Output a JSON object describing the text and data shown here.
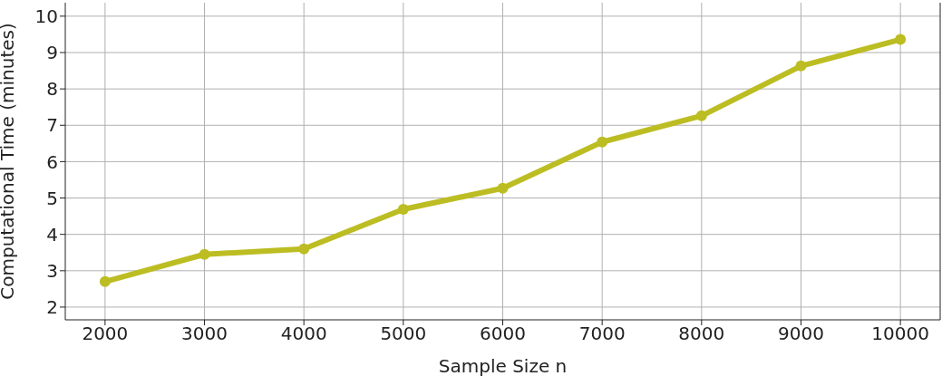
{
  "chart_data": {
    "type": "line",
    "xlabel": "Sample Size n",
    "ylabel": "Computational Time (minutes)",
    "x": [
      2000,
      3000,
      4000,
      5000,
      6000,
      7000,
      8000,
      9000,
      10000
    ],
    "series": [
      {
        "color": "#bcbd22",
        "values": [
          2.7,
          3.45,
          3.6,
          4.69,
          5.27,
          6.54,
          7.26,
          8.63,
          9.36
        ]
      }
    ],
    "xlim": [
      1600,
      10400
    ],
    "xticks": [
      2000,
      3000,
      4000,
      5000,
      6000,
      7000,
      8000,
      9000,
      10000
    ],
    "ylim": [
      1.65,
      10.37
    ],
    "yticks": [
      2,
      3,
      4,
      5,
      6,
      7,
      8,
      9,
      10
    ],
    "grid": true,
    "marker": "circle",
    "line_style": "solid"
  }
}
